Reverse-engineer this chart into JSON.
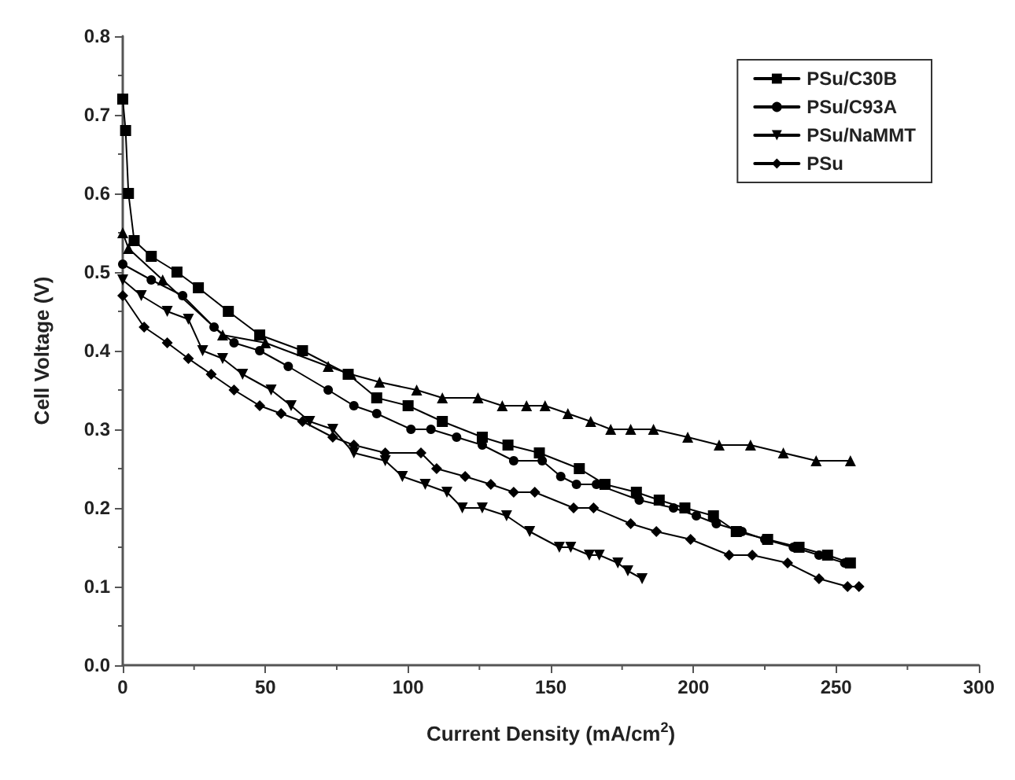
{
  "chart_data": {
    "type": "line",
    "xlabel": "Current Density (mA/cm$^{2}$)",
    "ylabel": "Cell Voltage (V)",
    "xlim": [
      0,
      300
    ],
    "ylim": [
      0,
      0.8
    ],
    "xticks": [
      0,
      50,
      100,
      150,
      200,
      250,
      300
    ],
    "yticks": [
      {
        "value": 0,
        "label": "0.0"
      },
      {
        "value": 0.1,
        "label": "0.1"
      },
      {
        "value": 0.2,
        "label": "0.2"
      },
      {
        "value": 0.3,
        "label": "0.3"
      },
      {
        "value": 0.4,
        "label": "0.4"
      },
      {
        "value": 0.5,
        "label": "0.5"
      },
      {
        "value": 0.6,
        "label": "0.6"
      },
      {
        "value": 0.7,
        "label": "0.7"
      },
      {
        "value": 0.8,
        "label": "0.8"
      }
    ],
    "grid": false,
    "legend": "top right",
    "line_style": "solid",
    "series": [
      {
        "name": "PSu/C30B",
        "color": "#000000",
        "marker": "square",
        "x": [
          0,
          1,
          2,
          4,
          10,
          19,
          26.5,
          37,
          48,
          63,
          79,
          89,
          100,
          112,
          126,
          135,
          146,
          160,
          169,
          180,
          188,
          197,
          207,
          215,
          226,
          237,
          247,
          255
        ],
        "values": [
          0.72,
          0.68,
          0.6,
          0.54,
          0.52,
          0.5,
          0.48,
          0.45,
          0.42,
          0.4,
          0.37,
          0.34,
          0.33,
          0.31,
          0.29,
          0.28,
          0.27,
          0.25,
          0.23,
          0.22,
          0.21,
          0.2,
          0.19,
          0.17,
          0.16,
          0.15,
          0.14,
          0.13
        ]
      },
      {
        "name": "PSu/C93A",
        "color": "#000000",
        "marker": "circle",
        "x": [
          0,
          10,
          21,
          32,
          39,
          48,
          58,
          72,
          81,
          89,
          101,
          108,
          117,
          126,
          137,
          147,
          153.5,
          159,
          166,
          181,
          193,
          201,
          208,
          217,
          225,
          235,
          244,
          253
        ],
        "values": [
          0.51,
          0.49,
          0.47,
          0.43,
          0.41,
          0.4,
          0.38,
          0.35,
          0.33,
          0.32,
          0.3,
          0.3,
          0.29,
          0.28,
          0.26,
          0.26,
          0.24,
          0.23,
          0.23,
          0.21,
          0.2,
          0.19,
          0.18,
          0.17,
          0.16,
          0.15,
          0.14,
          0.13
        ]
      },
      {
        "color": "#000000",
        "marker": "triangle",
        "x": [
          0,
          2,
          14,
          35,
          50,
          72,
          80,
          90,
          103,
          112,
          124.5,
          133,
          141.5,
          148,
          156,
          164,
          171,
          178,
          186,
          198,
          209,
          220,
          231.5,
          243,
          255
        ],
        "values": [
          0.55,
          0.53,
          0.49,
          0.42,
          0.41,
          0.38,
          0.37,
          0.36,
          0.35,
          0.34,
          0.34,
          0.33,
          0.33,
          0.33,
          0.32,
          0.31,
          0.3,
          0.3,
          0.3,
          0.29,
          0.28,
          0.28,
          0.27,
          0.26,
          0.26
        ]
      },
      {
        "name": "PSu/NaMMT",
        "color": "#000000",
        "marker": "triangle-down",
        "x": [
          0,
          6.5,
          15.6,
          23,
          28,
          35,
          42,
          52,
          59,
          65.5,
          73.6,
          81,
          92,
          98,
          106,
          113.6,
          119,
          126,
          134.5,
          142.6,
          153,
          157,
          163.5,
          167,
          173.5,
          177,
          182
        ],
        "values": [
          0.49,
          0.47,
          0.45,
          0.44,
          0.4,
          0.39,
          0.37,
          0.35,
          0.33,
          0.31,
          0.3,
          0.27,
          0.26,
          0.24,
          0.23,
          0.22,
          0.2,
          0.2,
          0.19,
          0.17,
          0.15,
          0.15,
          0.14,
          0.14,
          0.13,
          0.12,
          0.11
        ]
      },
      {
        "name": "PSu",
        "color": "#000000",
        "marker": "diamond",
        "x": [
          0,
          7.5,
          15.6,
          23,
          31,
          39,
          48,
          55.5,
          63,
          73.6,
          81,
          92,
          104.5,
          110,
          120,
          129,
          137,
          144.4,
          158,
          165,
          178,
          187,
          199,
          212.5,
          220.6,
          233,
          244,
          254,
          258
        ],
        "values": [
          0.47,
          0.43,
          0.41,
          0.39,
          0.37,
          0.35,
          0.33,
          0.32,
          0.31,
          0.29,
          0.28,
          0.27,
          0.27,
          0.25,
          0.24,
          0.23,
          0.22,
          0.22,
          0.2,
          0.2,
          0.18,
          0.17,
          0.16,
          0.14,
          0.14,
          0.13,
          0.11,
          0.1,
          0.1
        ]
      }
    ]
  }
}
